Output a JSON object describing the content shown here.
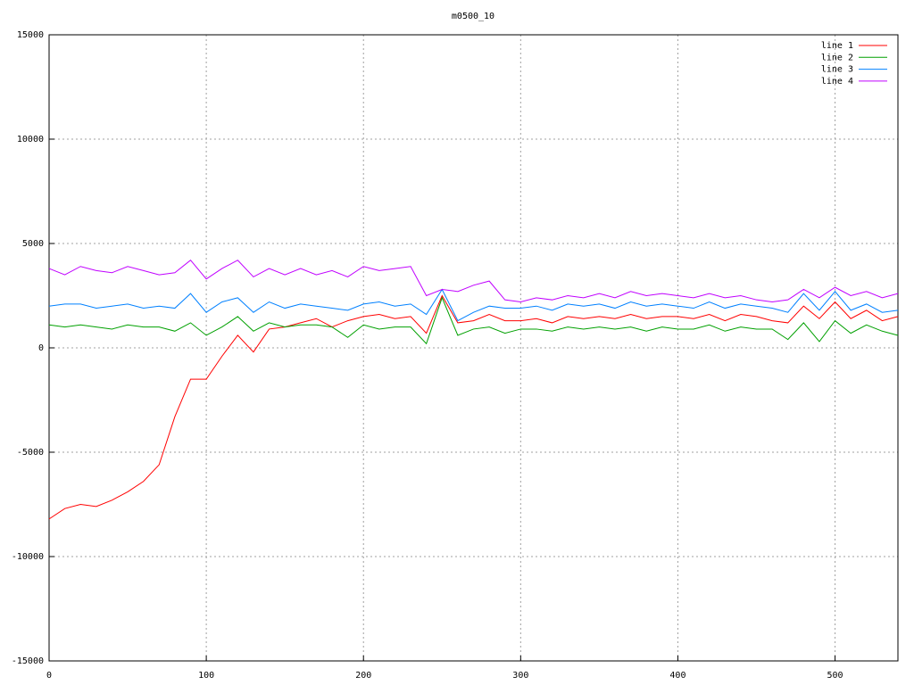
{
  "chart_data": {
    "type": "line",
    "title": "m0500_10",
    "x": [
      0,
      10,
      20,
      30,
      40,
      50,
      60,
      70,
      80,
      90,
      100,
      110,
      120,
      130,
      140,
      150,
      160,
      170,
      180,
      190,
      200,
      210,
      220,
      230,
      240,
      250,
      260,
      270,
      280,
      290,
      300,
      310,
      320,
      330,
      340,
      350,
      360,
      370,
      380,
      390,
      400,
      410,
      420,
      430,
      440,
      450,
      460,
      470,
      480,
      490,
      500,
      510,
      520,
      530,
      540
    ],
    "series": [
      {
        "name": "line 1",
        "color": "#ff0000",
        "values": [
          -8200,
          -7700,
          -7500,
          -7600,
          -7300,
          -6900,
          -6400,
          -5600,
          -3300,
          -1500,
          -1500,
          -400,
          600,
          -200,
          900,
          1000,
          1200,
          1400,
          1000,
          1300,
          1500,
          1600,
          1400,
          1500,
          700,
          2500,
          1200,
          1300,
          1600,
          1300,
          1300,
          1400,
          1200,
          1500,
          1400,
          1500,
          1400,
          1600,
          1400,
          1500,
          1500,
          1400,
          1600,
          1300,
          1600,
          1500,
          1300,
          1200,
          2000,
          1400,
          2200,
          1400,
          1800,
          1300,
          1500
        ]
      },
      {
        "name": "line 2",
        "color": "#00a000",
        "values": [
          1100,
          1000,
          1100,
          1000,
          900,
          1100,
          1000,
          1000,
          800,
          1200,
          600,
          1000,
          1500,
          800,
          1200,
          1000,
          1100,
          1100,
          1000,
          500,
          1100,
          900,
          1000,
          1000,
          200,
          2400,
          600,
          900,
          1000,
          700,
          900,
          900,
          800,
          1000,
          900,
          1000,
          900,
          1000,
          800,
          1000,
          900,
          900,
          1100,
          800,
          1000,
          900,
          900,
          400,
          1200,
          300,
          1300,
          700,
          1100,
          800,
          600
        ]
      },
      {
        "name": "line 3",
        "color": "#0080ff",
        "values": [
          2000,
          2100,
          2100,
          1900,
          2000,
          2100,
          1900,
          2000,
          1900,
          2600,
          1700,
          2200,
          2400,
          1700,
          2200,
          1900,
          2100,
          2000,
          1900,
          1800,
          2100,
          2200,
          2000,
          2100,
          1600,
          2800,
          1300,
          1700,
          2000,
          1900,
          1900,
          2000,
          1800,
          2100,
          2000,
          2100,
          1900,
          2200,
          2000,
          2100,
          2000,
          1900,
          2200,
          1900,
          2100,
          2000,
          1900,
          1700,
          2600,
          1800,
          2700,
          1800,
          2100,
          1700,
          1800
        ]
      },
      {
        "name": "line 4",
        "color": "#c000ff",
        "values": [
          3800,
          3500,
          3900,
          3700,
          3600,
          3900,
          3700,
          3500,
          3600,
          4200,
          3300,
          3800,
          4200,
          3400,
          3800,
          3500,
          3800,
          3500,
          3700,
          3400,
          3900,
          3700,
          3800,
          3900,
          2500,
          2800,
          2700,
          3000,
          3200,
          2300,
          2200,
          2400,
          2300,
          2500,
          2400,
          2600,
          2400,
          2700,
          2500,
          2600,
          2500,
          2400,
          2600,
          2400,
          2500,
          2300,
          2200,
          2300,
          2800,
          2400,
          2900,
          2500,
          2700,
          2400,
          2600
        ]
      }
    ],
    "xlim": [
      0,
      540
    ],
    "xticks": [
      0,
      100,
      200,
      300,
      400,
      500
    ],
    "ylim": [
      -15000,
      15000
    ],
    "yticks": [
      -15000,
      -10000,
      -5000,
      0,
      5000,
      10000,
      15000
    ],
    "grid": true,
    "legend": "top-right"
  }
}
